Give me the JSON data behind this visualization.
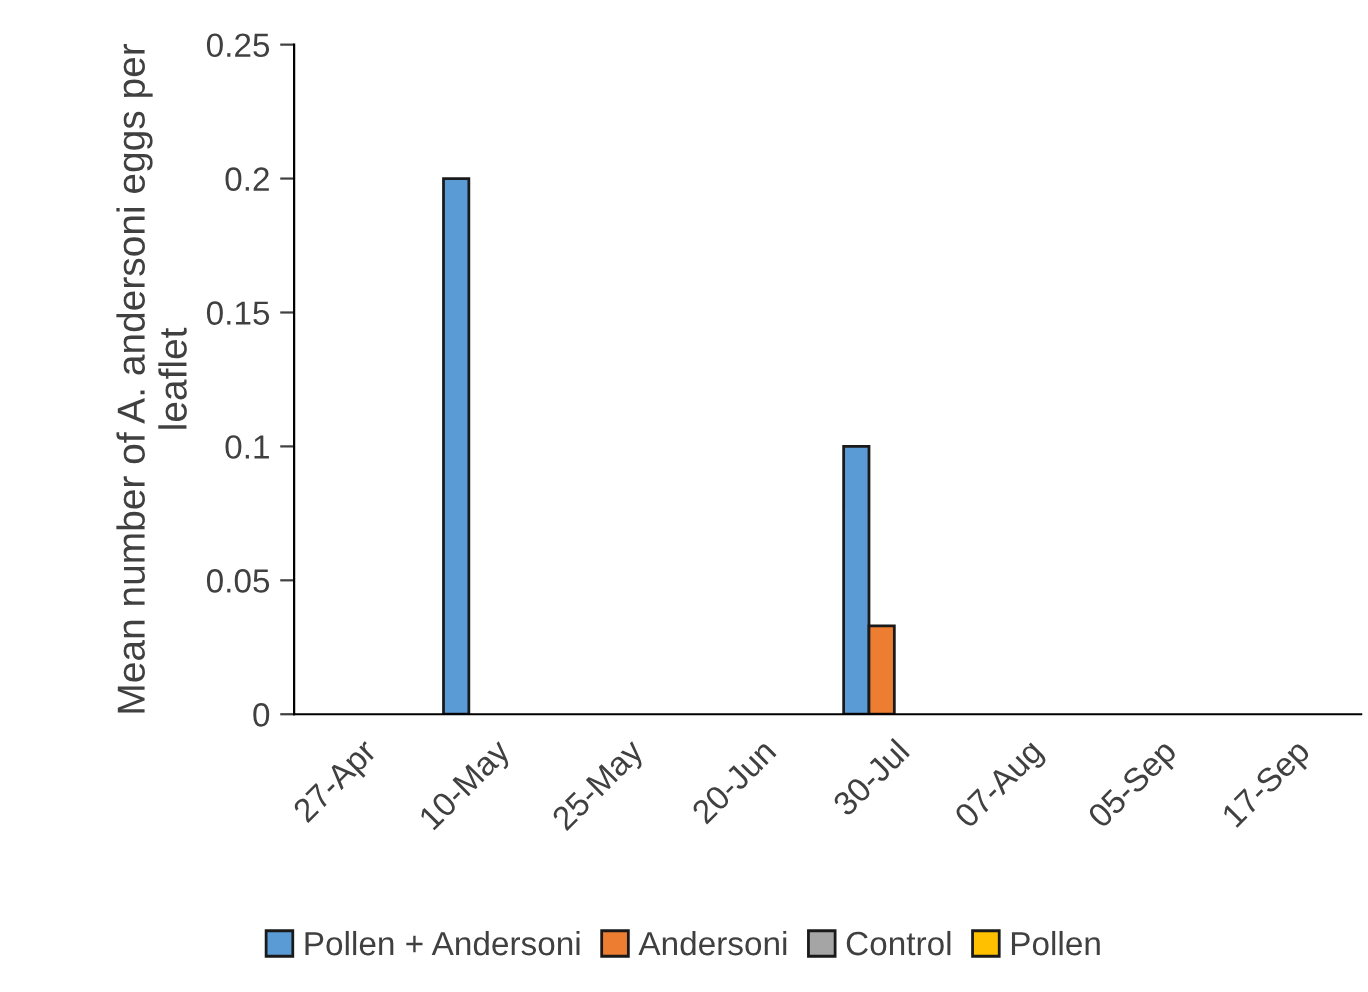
{
  "chart_data": {
    "type": "bar",
    "ylabel": "Mean number of A. andersoni eggs per leaflet",
    "categories": [
      "27-Apr",
      "10-May",
      "25-May",
      "20-Jun",
      "30-Jul",
      "07-Aug",
      "05-Sep",
      "17-Sep"
    ],
    "series": [
      {
        "name": "Pollen + Andersoni",
        "color": "#5b9bd5",
        "values": [
          0,
          0.2,
          0,
          0,
          0.1,
          0,
          0,
          0
        ]
      },
      {
        "name": "Andersoni",
        "color": "#ed7d31",
        "values": [
          0,
          0,
          0,
          0,
          0.033,
          0,
          0,
          0
        ]
      },
      {
        "name": "Control",
        "color": "#a5a5a5",
        "values": [
          0,
          0,
          0,
          0,
          0,
          0,
          0,
          0
        ]
      },
      {
        "name": "Pollen",
        "color": "#ffc000",
        "values": [
          0,
          0,
          0,
          0,
          0,
          0,
          0,
          0
        ]
      }
    ],
    "ylim": [
      0,
      0.25
    ],
    "yticks": [
      0,
      0.05,
      0.1,
      0.15,
      0.2,
      0.25
    ],
    "grid": false,
    "legend": "bottom"
  }
}
